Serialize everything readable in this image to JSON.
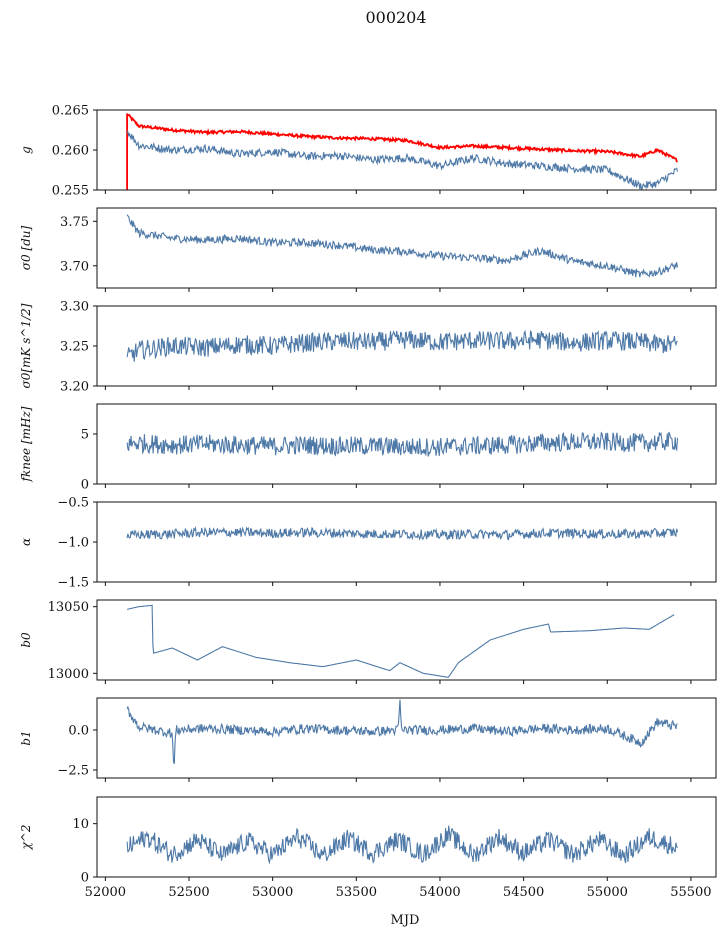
{
  "figure": {
    "title": "000204",
    "xlabel": "MJD"
  },
  "colors": {
    "series_blue": "#4e79a7",
    "series_red": "#ff0000",
    "axis": "#111111"
  },
  "chart_data": [
    {
      "type": "line",
      "ylabel": "g",
      "ylim": [
        0.255,
        0.265
      ],
      "yticks": [
        "0.255",
        "0.260",
        "0.265"
      ],
      "xlim": [
        51950,
        55650
      ],
      "series": [
        {
          "color": "#ff0000",
          "x": [
            52130,
            52200,
            52400,
            52600,
            52800,
            53000,
            53200,
            53400,
            53600,
            53800,
            54000,
            54200,
            54400,
            54600,
            54800,
            55000,
            55200,
            55300,
            55420
          ],
          "values": [
            0.2645,
            0.263,
            0.2625,
            0.2622,
            0.2623,
            0.262,
            0.2617,
            0.2615,
            0.2614,
            0.2612,
            0.2603,
            0.2605,
            0.2603,
            0.2601,
            0.2599,
            0.2598,
            0.2592,
            0.26,
            0.2587
          ]
        },
        {
          "color": "#4e79a7",
          "x": [
            52130,
            52200,
            52400,
            52600,
            52800,
            53000,
            53200,
            53400,
            53600,
            53800,
            54000,
            54200,
            54400,
            54600,
            54800,
            55000,
            55200,
            55300,
            55420
          ],
          "values": [
            0.2624,
            0.2606,
            0.26,
            0.2602,
            0.2595,
            0.2598,
            0.2592,
            0.2593,
            0.2588,
            0.259,
            0.258,
            0.259,
            0.2583,
            0.258,
            0.2577,
            0.2575,
            0.2555,
            0.2558,
            0.2575
          ]
        }
      ]
    },
    {
      "type": "line",
      "ylabel": "σ0 [du]",
      "ylim": [
        3.675,
        3.765
      ],
      "yticks": [
        "3.70",
        "3.75"
      ],
      "xlim": [
        51950,
        55650
      ],
      "series": [
        {
          "color": "#4e79a7",
          "x": [
            52130,
            52200,
            52400,
            52600,
            52800,
            53000,
            53200,
            53400,
            53600,
            53800,
            54000,
            54200,
            54400,
            54600,
            54800,
            55000,
            55200,
            55300,
            55420
          ],
          "values": [
            3.755,
            3.737,
            3.731,
            3.729,
            3.731,
            3.726,
            3.726,
            3.723,
            3.718,
            3.716,
            3.711,
            3.709,
            3.706,
            3.717,
            3.705,
            3.7,
            3.69,
            3.693,
            3.701
          ]
        }
      ]
    },
    {
      "type": "line",
      "ylabel": "σ0[mK s^1/2]",
      "ylim": [
        3.2,
        3.3
      ],
      "yticks": [
        "3.20",
        "3.25",
        "3.30"
      ],
      "xlim": [
        51950,
        55650
      ],
      "series": [
        {
          "color": "#4e79a7",
          "x": [
            52130,
            52200,
            52400,
            52600,
            52800,
            53000,
            53200,
            53400,
            53600,
            53800,
            54000,
            54200,
            54400,
            54600,
            54800,
            55000,
            55200,
            55300,
            55420
          ],
          "values": [
            3.235,
            3.245,
            3.25,
            3.248,
            3.252,
            3.25,
            3.254,
            3.256,
            3.255,
            3.258,
            3.255,
            3.257,
            3.256,
            3.258,
            3.254,
            3.257,
            3.255,
            3.252,
            3.252
          ]
        }
      ]
    },
    {
      "type": "line",
      "ylabel": "fknee [mHz]",
      "ylim": [
        0,
        8
      ],
      "yticks": [
        "0",
        "5"
      ],
      "xlim": [
        51950,
        55650
      ],
      "series": [
        {
          "color": "#4e79a7",
          "x": [
            52130,
            52200,
            52400,
            52600,
            52800,
            53000,
            53200,
            53400,
            53600,
            53800,
            54000,
            54200,
            54400,
            54600,
            54800,
            55000,
            55200,
            55300,
            55420
          ],
          "values": [
            4.0,
            4.1,
            3.9,
            4.0,
            3.9,
            3.8,
            3.9,
            3.8,
            3.8,
            3.7,
            3.7,
            3.8,
            3.9,
            4.1,
            4.2,
            4.2,
            4.1,
            4.2,
            4.3
          ]
        }
      ]
    },
    {
      "type": "line",
      "ylabel": "α",
      "ylim": [
        -1.5,
        -0.5
      ],
      "yticks": [
        "−1.5",
        "−1.0",
        "−0.5"
      ],
      "xlim": [
        51950,
        55650
      ],
      "series": [
        {
          "color": "#4e79a7",
          "x": [
            52130,
            52200,
            52400,
            52600,
            52800,
            53000,
            53200,
            53400,
            53600,
            53800,
            54000,
            54200,
            54400,
            54600,
            54800,
            55000,
            55200,
            55300,
            55420
          ],
          "values": [
            -0.92,
            -0.91,
            -0.9,
            -0.88,
            -0.88,
            -0.89,
            -0.88,
            -0.89,
            -0.9,
            -0.9,
            -0.91,
            -0.9,
            -0.91,
            -0.89,
            -0.89,
            -0.9,
            -0.9,
            -0.89,
            -0.88
          ]
        }
      ]
    },
    {
      "type": "line",
      "ylabel": "b0",
      "ylim": [
        12995,
        13055
      ],
      "yticks": [
        "13000",
        "13050"
      ],
      "xlim": [
        51950,
        55650
      ],
      "series": [
        {
          "color": "#4e79a7",
          "x": [
            52130,
            52200,
            52280,
            52285,
            52400,
            52550,
            52700,
            52900,
            53100,
            53300,
            53500,
            53700,
            53760,
            53900,
            54050,
            54110,
            54300,
            54500,
            54650,
            54660,
            54900,
            55100,
            55250,
            55400
          ],
          "values": [
            13048,
            13050,
            13051,
            13015,
            13019,
            13010,
            13020,
            13012,
            13008,
            13005,
            13010,
            13002,
            13008,
            13000,
            12997,
            13008,
            13025,
            13033,
            13037,
            13031,
            13032,
            13034,
            13033,
            13044
          ]
        }
      ]
    },
    {
      "type": "line",
      "ylabel": "b1",
      "ylim": [
        -3.0,
        2.0
      ],
      "yticks": [
        "−2.5",
        "0.0"
      ],
      "xlim": [
        51950,
        55650
      ],
      "series": [
        {
          "color": "#4e79a7",
          "x": [
            52130,
            52200,
            52400,
            52410,
            52420,
            52600,
            52800,
            53000,
            53200,
            53400,
            53600,
            53750,
            53760,
            53770,
            54000,
            54200,
            54400,
            54600,
            54800,
            55000,
            55200,
            55300,
            55420
          ],
          "values": [
            1.3,
            0.2,
            -0.2,
            -2.7,
            0.0,
            0.1,
            0.0,
            -0.1,
            0.1,
            0.0,
            -0.1,
            0.0,
            1.9,
            0.0,
            0.0,
            0.1,
            -0.1,
            0.1,
            0.0,
            0.1,
            -0.8,
            0.5,
            0.2
          ]
        }
      ]
    },
    {
      "type": "line",
      "ylabel": "χ^2",
      "ylim": [
        0,
        15
      ],
      "yticks": [
        "0",
        "10"
      ],
      "xlim": [
        51950,
        55650
      ],
      "series": [
        {
          "color": "#4e79a7",
          "x": [
            52130,
            52250,
            52400,
            52550,
            52700,
            52850,
            53000,
            53150,
            53300,
            53450,
            53600,
            53750,
            53900,
            54050,
            54200,
            54350,
            54500,
            54650,
            54800,
            54950,
            55100,
            55250,
            55420
          ],
          "values": [
            5.5,
            7.5,
            4.2,
            7.0,
            4.0,
            6.8,
            4.2,
            7.5,
            4.0,
            7.2,
            4.5,
            7.0,
            4.2,
            8.0,
            4.0,
            7.5,
            4.5,
            7.0,
            4.2,
            7.0,
            4.0,
            7.5,
            5.5
          ]
        }
      ]
    }
  ],
  "x_axis": {
    "ticks": [
      52000,
      52500,
      53000,
      53500,
      54000,
      54500,
      55000,
      55500
    ],
    "tick_labels": [
      "52000",
      "52500",
      "53000",
      "53500",
      "54000",
      "54500",
      "55000",
      "55500"
    ]
  }
}
